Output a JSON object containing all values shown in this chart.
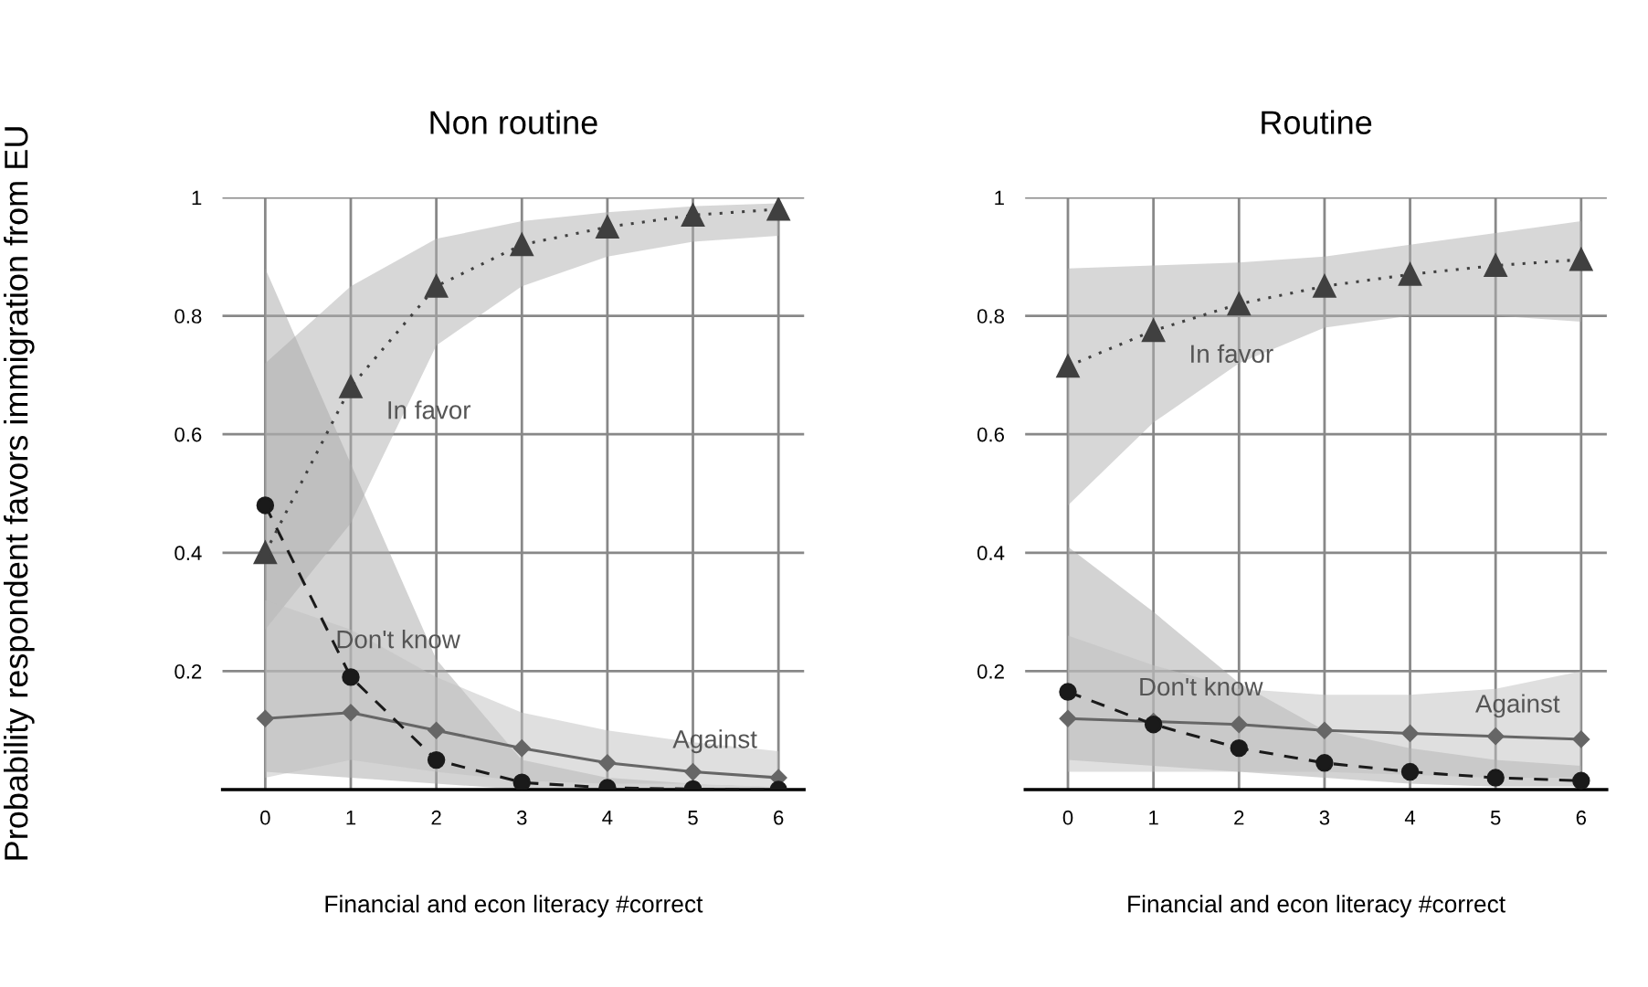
{
  "chart_data": [
    {
      "type": "line",
      "title": "Non routine",
      "xlabel": "Financial and econ literacy #correct",
      "ylabel": "Probability respondent favors immigration from EU",
      "x": [
        0,
        1,
        2,
        3,
        4,
        5,
        6
      ],
      "xlim": [
        -0.5,
        6.3
      ],
      "ylim": [
        0,
        1.0
      ],
      "xticks": [
        0,
        1,
        2,
        3,
        4,
        5,
        6
      ],
      "yticks": [
        0.2,
        0.4,
        0.6,
        0.8,
        1
      ],
      "grid": true,
      "legend": false,
      "series": [
        {
          "name": "In favor",
          "color": "#404040",
          "marker": "triangle",
          "line_style": "dotted",
          "values": [
            0.4,
            0.68,
            0.85,
            0.92,
            0.95,
            0.97,
            0.98
          ],
          "lower": [
            0.27,
            0.45,
            0.75,
            0.85,
            0.9,
            0.925,
            0.935
          ],
          "upper": [
            0.72,
            0.85,
            0.93,
            0.96,
            0.975,
            0.985,
            0.99
          ]
        },
        {
          "name": "Don't know",
          "color": "#1a1a1a",
          "marker": "circle",
          "line_style": "dashed",
          "values": [
            0.48,
            0.19,
            0.05,
            0.012,
            0.003,
            0.001,
            0.0
          ],
          "lower": [
            0.03,
            0.02,
            0.01,
            0.0,
            0.0,
            0.0,
            0.0
          ],
          "upper": [
            0.88,
            0.55,
            0.22,
            0.05,
            0.02,
            0.01,
            0.005
          ]
        },
        {
          "name": "Against",
          "color": "#666666",
          "marker": "diamond",
          "line_style": "solid",
          "values": [
            0.12,
            0.13,
            0.1,
            0.07,
            0.045,
            0.03,
            0.02
          ],
          "lower": [
            0.02,
            0.05,
            0.03,
            0.015,
            0.01,
            0.01,
            0.005
          ],
          "upper": [
            0.32,
            0.27,
            0.19,
            0.13,
            0.1,
            0.08,
            0.065
          ]
        }
      ]
    },
    {
      "type": "line",
      "title": "Routine",
      "xlabel": "Financial and econ literacy #correct",
      "x": [
        0,
        1,
        2,
        3,
        4,
        5,
        6
      ],
      "xlim": [
        -0.5,
        6.3
      ],
      "ylim": [
        0,
        1.0
      ],
      "xticks": [
        0,
        1,
        2,
        3,
        4,
        5,
        6
      ],
      "yticks": [
        0.2,
        0.4,
        0.6,
        0.8,
        1
      ],
      "grid": true,
      "legend": false,
      "series": [
        {
          "name": "In favor",
          "color": "#404040",
          "marker": "triangle",
          "line_style": "dotted",
          "values": [
            0.715,
            0.775,
            0.82,
            0.85,
            0.87,
            0.885,
            0.895
          ],
          "lower": [
            0.48,
            0.62,
            0.72,
            0.78,
            0.8,
            0.8,
            0.79
          ],
          "upper": [
            0.88,
            0.885,
            0.89,
            0.9,
            0.92,
            0.94,
            0.96
          ]
        },
        {
          "name": "Don't know",
          "color": "#1a1a1a",
          "marker": "circle",
          "line_style": "dashed",
          "values": [
            0.165,
            0.11,
            0.07,
            0.045,
            0.03,
            0.02,
            0.015
          ],
          "lower": [
            0.05,
            0.04,
            0.03,
            0.02,
            0.01,
            0.005,
            0.005
          ],
          "upper": [
            0.41,
            0.3,
            0.18,
            0.1,
            0.07,
            0.05,
            0.04
          ]
        },
        {
          "name": "Against",
          "color": "#666666",
          "marker": "diamond",
          "line_style": "solid",
          "values": [
            0.12,
            0.115,
            0.11,
            0.1,
            0.095,
            0.09,
            0.085
          ],
          "lower": [
            0.03,
            0.03,
            0.03,
            0.03,
            0.025,
            0.02,
            0.02
          ],
          "upper": [
            0.26,
            0.21,
            0.17,
            0.16,
            0.16,
            0.17,
            0.2
          ]
        }
      ]
    }
  ]
}
